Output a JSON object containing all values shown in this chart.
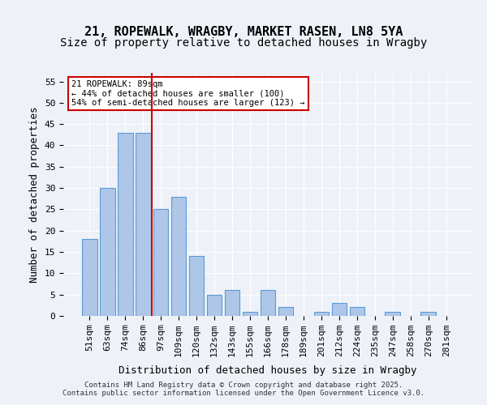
{
  "title1": "21, ROPEWALK, WRAGBY, MARKET RASEN, LN8 5YA",
  "title2": "Size of property relative to detached houses in Wragby",
  "xlabel": "Distribution of detached houses by size in Wragby",
  "ylabel": "Number of detached properties",
  "categories": [
    "51sqm",
    "63sqm",
    "74sqm",
    "86sqm",
    "97sqm",
    "109sqm",
    "120sqm",
    "132sqm",
    "143sqm",
    "155sqm",
    "166sqm",
    "178sqm",
    "189sqm",
    "201sqm",
    "212sqm",
    "224sqm",
    "235sqm",
    "247sqm",
    "258sqm",
    "270sqm",
    "281sqm"
  ],
  "values": [
    18,
    30,
    43,
    43,
    25,
    28,
    14,
    5,
    6,
    1,
    6,
    2,
    0,
    1,
    3,
    2,
    0,
    1,
    0,
    1,
    0
  ],
  "bar_color": "#aec6e8",
  "bar_edgecolor": "#5b9bd5",
  "vline_x": 3.5,
  "vline_color": "#cc0000",
  "annotation_text": "21 ROPEWALK: 89sqm\n← 44% of detached houses are smaller (100)\n54% of semi-detached houses are larger (123) →",
  "annotation_box_color": "#ffffff",
  "annotation_box_edgecolor": "#cc0000",
  "ylim": [
    0,
    57
  ],
  "yticks": [
    0,
    5,
    10,
    15,
    20,
    25,
    30,
    35,
    40,
    45,
    50,
    55
  ],
  "bg_color": "#eef2f8",
  "plot_bg_color": "#eef2f8",
  "footer": "Contains HM Land Registry data © Crown copyright and database right 2025.\nContains public sector information licensed under the Open Government Licence v3.0.",
  "title_fontsize": 11,
  "subtitle_fontsize": 10,
  "axis_fontsize": 9,
  "tick_fontsize": 8
}
